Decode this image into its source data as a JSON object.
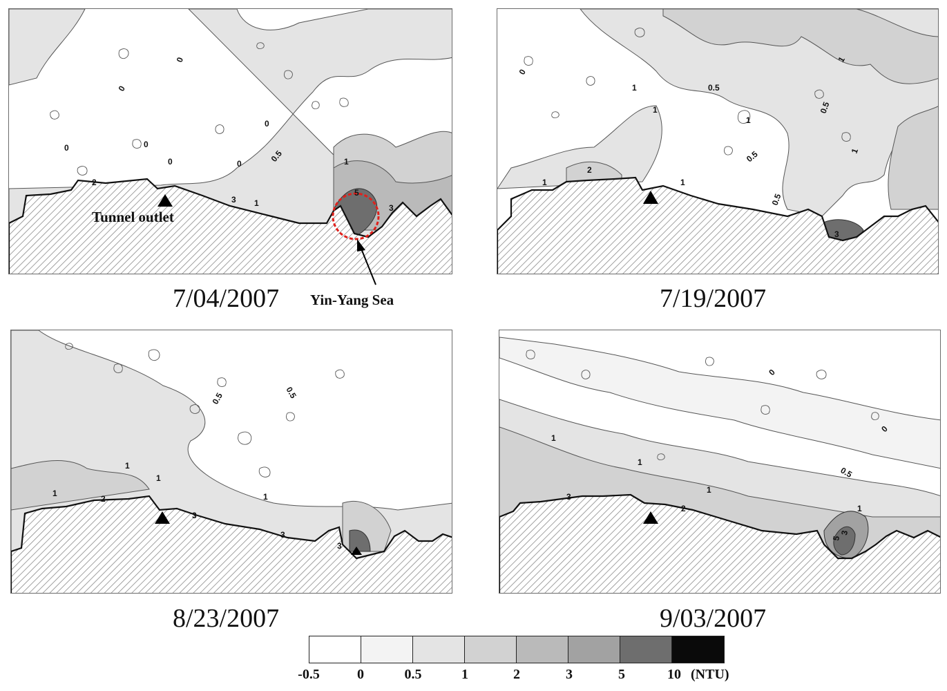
{
  "panels": [
    {
      "date": "7/04/2007",
      "contour_labels": [
        "0",
        "0",
        "0",
        "0",
        "0",
        "0",
        "0",
        "0.5",
        "1",
        "1",
        "2",
        "3",
        "3",
        "5"
      ]
    },
    {
      "date": "7/19/2007",
      "contour_labels": [
        "0",
        "1",
        "1",
        "1",
        "1",
        "0.5",
        "0.5",
        "0.5",
        "0.5",
        "1",
        "1",
        "2",
        "1",
        "3"
      ]
    },
    {
      "date": "8/23/2007",
      "contour_labels": [
        "0.5",
        "0.5",
        "1",
        "1",
        "1",
        "1",
        "2",
        "3",
        "3",
        "3"
      ]
    },
    {
      "date": "9/03/2007",
      "contour_labels": [
        "0",
        "0",
        "1",
        "1",
        "0.5",
        "1",
        "3",
        "2",
        "5",
        "3",
        "1"
      ]
    }
  ],
  "annotations": {
    "tunnel_outlet": "Tunnel outlet",
    "yin_yang_sea": "Yin-Yang Sea"
  },
  "legend": {
    "ticks": [
      "-0.5",
      "0",
      "0.5",
      "1",
      "2",
      "3",
      "5",
      "10"
    ],
    "unit": "(NTU)",
    "colors": [
      "#ffffff",
      "#f3f3f3",
      "#e4e4e4",
      "#d2d2d2",
      "#bababa",
      "#a2a2a2",
      "#6e6e6e",
      "#0a0a0a"
    ]
  },
  "colors": {
    "land_hatch": "#9a9a9a",
    "highlight_circle": "#e0201b",
    "contour_line": "#555555"
  }
}
